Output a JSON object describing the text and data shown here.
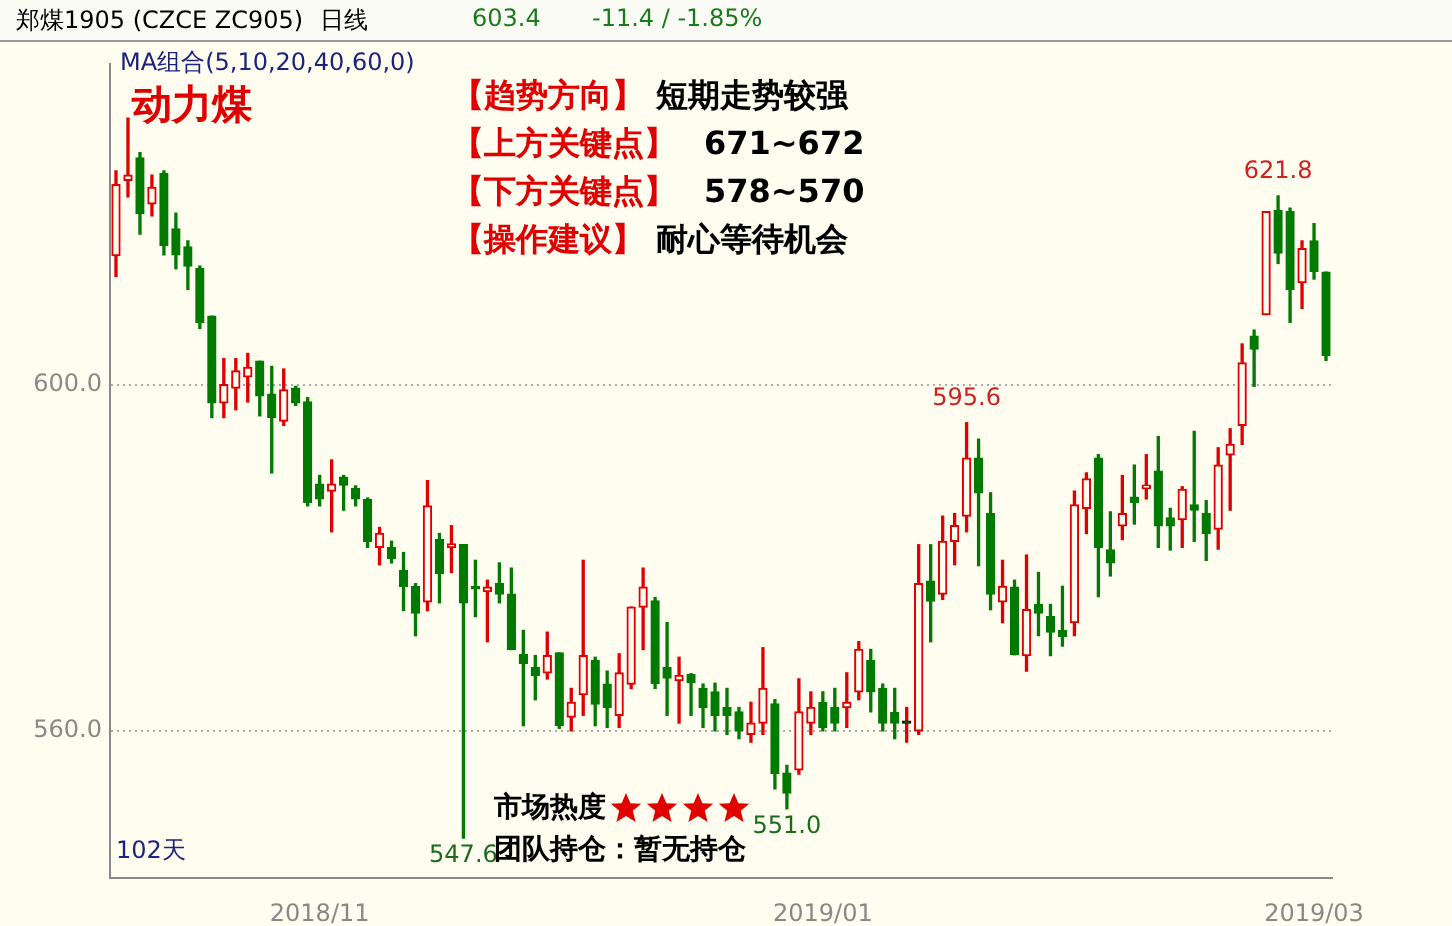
{
  "chart_data": {
    "type": "candlestick",
    "title": "郑煤1905 (CZCE ZC905)",
    "annotations": [
      "MA组合(5,10,20,40,60,0)",
      "动力煤",
      "【趋势方向】",
      "短期走势较强",
      "【上方关键点】",
      "671~672",
      "【下方关键点】",
      "578~570",
      "【操作建议】",
      "耐心等待机会",
      "市场热度",
      "团队持仓：暂无持仓",
      "102天",
      "日线",
      "603.4",
      "-11.4 / -1.85%"
    ],
    "categories": [
      null,
      null,
      null,
      null,
      null,
      null,
      null,
      null,
      null,
      null,
      null,
      null,
      null,
      null,
      null,
      null,
      null,
      "2018/11",
      null,
      null,
      null,
      null,
      null,
      null,
      null,
      null,
      null,
      null,
      null,
      null,
      null,
      null,
      null,
      null,
      null,
      null,
      null,
      null,
      null,
      null,
      null,
      null,
      null,
      null,
      null,
      null,
      null,
      null,
      null,
      null,
      null,
      null,
      null,
      null,
      null,
      null,
      null,
      null,
      null,
      "2019/01",
      null,
      null,
      null,
      null,
      null,
      null,
      null,
      null,
      null,
      null,
      null,
      null,
      null,
      null,
      null,
      null,
      null,
      null,
      null,
      null,
      null,
      null,
      null,
      null,
      null,
      null,
      null,
      null,
      null,
      null,
      null,
      null,
      null,
      null,
      null,
      null,
      null,
      null,
      null,
      null,
      "2019/03",
      null
    ],
    "ohlc": [
      [
        614.9,
        624.7,
        612.5,
        623.1
      ],
      [
        623.6,
        630.8,
        621.7,
        624.2
      ],
      [
        626.2,
        626.8,
        617.4,
        619.8
      ],
      [
        620.9,
        624.2,
        619.5,
        622.8
      ],
      [
        624.4,
        624.7,
        615.0,
        616.1
      ],
      [
        618.0,
        619.8,
        613.4,
        615.0
      ],
      [
        615.9,
        616.6,
        611.0,
        613.7
      ],
      [
        613.4,
        613.7,
        606.5,
        607.2
      ],
      [
        607.9,
        607.9,
        596.2,
        597.9
      ],
      [
        597.9,
        603.0,
        596.2,
        600.0
      ],
      [
        599.6,
        603.0,
        597.1,
        601.6
      ],
      [
        600.9,
        603.6,
        598.0,
        602.0
      ],
      [
        602.7,
        602.7,
        596.4,
        598.7
      ],
      [
        598.9,
        602.1,
        589.8,
        596.2
      ],
      [
        595.8,
        601.8,
        595.3,
        599.4
      ],
      [
        599.6,
        599.8,
        597.6,
        597.9
      ],
      [
        598.0,
        598.5,
        586.0,
        586.4
      ],
      [
        588.5,
        589.5,
        586.0,
        586.8
      ],
      [
        587.7,
        591.3,
        583.0,
        588.5
      ],
      [
        589.3,
        589.5,
        585.5,
        588.4
      ],
      [
        588.0,
        588.3,
        586.0,
        586.8
      ],
      [
        586.7,
        586.9,
        581.2,
        581.9
      ],
      [
        581.2,
        583.5,
        579.2,
        582.8
      ],
      [
        581.2,
        581.9,
        579.4,
        579.9
      ],
      [
        578.5,
        580.6,
        573.9,
        576.7
      ],
      [
        576.7,
        577.0,
        571.0,
        573.6
      ],
      [
        574.9,
        588.9,
        573.9,
        586.0
      ],
      [
        582.1,
        582.8,
        574.8,
        578.2
      ],
      [
        581.2,
        583.7,
        578.3,
        581.6
      ],
      [
        581.5,
        581.5,
        547.6,
        574.8
      ],
      [
        576.7,
        579.7,
        573.2,
        576.4
      ],
      [
        576.1,
        577.4,
        570.3,
        576.6
      ],
      [
        577.0,
        579.4,
        574.8,
        575.8
      ],
      [
        575.8,
        578.8,
        569.4,
        569.4
      ],
      [
        568.8,
        571.6,
        560.6,
        567.8
      ],
      [
        567.3,
        568.7,
        563.6,
        566.4
      ],
      [
        566.7,
        571.4,
        566.0,
        568.7
      ],
      [
        569.0,
        569.0,
        560.3,
        560.6
      ],
      [
        561.6,
        564.9,
        560.0,
        563.3
      ],
      [
        564.2,
        579.7,
        561.8,
        568.7
      ],
      [
        568.1,
        568.5,
        560.6,
        563.1
      ],
      [
        565.4,
        566.9,
        560.4,
        562.7
      ],
      [
        561.8,
        568.9,
        560.4,
        566.7
      ],
      [
        565.4,
        574.3,
        564.9,
        574.3
      ],
      [
        574.3,
        578.8,
        569.4,
        576.6
      ],
      [
        575.0,
        575.4,
        564.9,
        565.5
      ],
      [
        567.3,
        572.5,
        561.8,
        566.1
      ],
      [
        565.8,
        568.5,
        560.9,
        566.4
      ],
      [
        566.5,
        566.6,
        561.8,
        565.6
      ],
      [
        564.9,
        565.4,
        560.4,
        562.7
      ],
      [
        564.5,
        565.5,
        560.0,
        561.8
      ],
      [
        562.7,
        564.9,
        559.6,
        561.8
      ],
      [
        562.2,
        562.7,
        559.1,
        560.0
      ],
      [
        559.6,
        563.3,
        558.7,
        560.9
      ],
      [
        560.9,
        569.6,
        559.6,
        564.9
      ],
      [
        563.1,
        563.6,
        553.3,
        555.1
      ],
      [
        555.1,
        556.0,
        551.0,
        552.8
      ],
      [
        555.5,
        566.0,
        555.0,
        562.2
      ],
      [
        560.9,
        564.5,
        559.6,
        562.7
      ],
      [
        563.3,
        564.5,
        560.0,
        560.4
      ],
      [
        562.7,
        564.9,
        560.0,
        560.9
      ],
      [
        562.7,
        566.7,
        560.4,
        563.3
      ],
      [
        564.5,
        570.3,
        563.6,
        569.4
      ],
      [
        568.1,
        569.4,
        562.2,
        564.5
      ],
      [
        564.9,
        565.4,
        560.0,
        560.9
      ],
      [
        562.1,
        564.9,
        559.1,
        560.9
      ],
      [
        560.9,
        562.7,
        558.7,
        560.9
      ],
      [
        560.0,
        581.5,
        559.6,
        577.0
      ],
      [
        577.3,
        581.5,
        570.3,
        575.0
      ],
      [
        575.8,
        584.8,
        575.2,
        581.9
      ],
      [
        581.9,
        585.1,
        579.2,
        583.7
      ],
      [
        584.8,
        595.6,
        583.0,
        591.5
      ],
      [
        591.5,
        593.7,
        579.1,
        587.5
      ],
      [
        585.1,
        587.5,
        574.0,
        575.8
      ],
      [
        574.9,
        579.7,
        572.5,
        576.7
      ],
      [
        576.6,
        577.4,
        568.8,
        568.8
      ],
      [
        568.7,
        580.3,
        566.9,
        574.0
      ],
      [
        574.6,
        578.3,
        571.0,
        573.6
      ],
      [
        573.2,
        574.6,
        568.7,
        571.4
      ],
      [
        571.6,
        576.7,
        569.8,
        570.9
      ],
      [
        572.5,
        587.7,
        571.0,
        586.1
      ],
      [
        585.7,
        589.8,
        582.8,
        589.1
      ],
      [
        591.5,
        591.9,
        575.5,
        581.2
      ],
      [
        580.9,
        585.3,
        577.9,
        579.4
      ],
      [
        583.7,
        589.5,
        582.1,
        585.1
      ],
      [
        587.0,
        590.7,
        583.9,
        586.4
      ],
      [
        588.0,
        591.9,
        586.8,
        588.4
      ],
      [
        590.0,
        594.0,
        581.2,
        583.7
      ],
      [
        584.6,
        585.7,
        580.9,
        583.7
      ],
      [
        584.4,
        588.2,
        581.2,
        587.9
      ],
      [
        586.1,
        594.6,
        581.9,
        585.5
      ],
      [
        585.1,
        586.6,
        579.7,
        582.8
      ],
      [
        583.3,
        592.7,
        581.0,
        590.7
      ],
      [
        591.9,
        594.9,
        585.5,
        593.1
      ],
      [
        595.3,
        604.7,
        593.1,
        602.5
      ],
      [
        605.6,
        606.3,
        599.8,
        604.1
      ],
      [
        608.1,
        620.0,
        608.1,
        620.0
      ],
      [
        620.1,
        621.8,
        614.0,
        615.2
      ],
      [
        620.0,
        620.4,
        607.2,
        611.0
      ],
      [
        611.8,
        616.6,
        608.8,
        615.7
      ],
      [
        616.6,
        618.6,
        612.2,
        613.1
      ],
      [
        613.0,
        613.0,
        602.8,
        603.4
      ]
    ],
    "value_labels": [
      null,
      null,
      null,
      null,
      null,
      null,
      null,
      null,
      null,
      null,
      null,
      null,
      null,
      null,
      null,
      null,
      null,
      null,
      null,
      null,
      null,
      null,
      null,
      null,
      null,
      null,
      null,
      null,
      null,
      "547.6",
      null,
      null,
      null,
      null,
      null,
      null,
      null,
      null,
      null,
      null,
      null,
      null,
      null,
      null,
      null,
      null,
      null,
      null,
      null,
      null,
      null,
      null,
      null,
      null,
      null,
      null,
      "551.0",
      null,
      null,
      null,
      null,
      null,
      null,
      null,
      null,
      null,
      null,
      null,
      null,
      null,
      null,
      "595.6",
      null,
      null,
      null,
      null,
      null,
      null,
      null,
      null,
      null,
      null,
      null,
      null,
      null,
      null,
      null,
      null,
      null,
      null,
      null,
      null,
      null,
      null,
      null,
      null,
      null,
      "621.8",
      null,
      null,
      null,
      null
    ],
    "ylim": [
      543,
      637
    ],
    "yticks": [
      {
        "value": 560,
        "label": "560.0"
      },
      {
        "value": 600,
        "label": "600.0"
      }
    ],
    "grid": "y",
    "legend": false
  }
}
